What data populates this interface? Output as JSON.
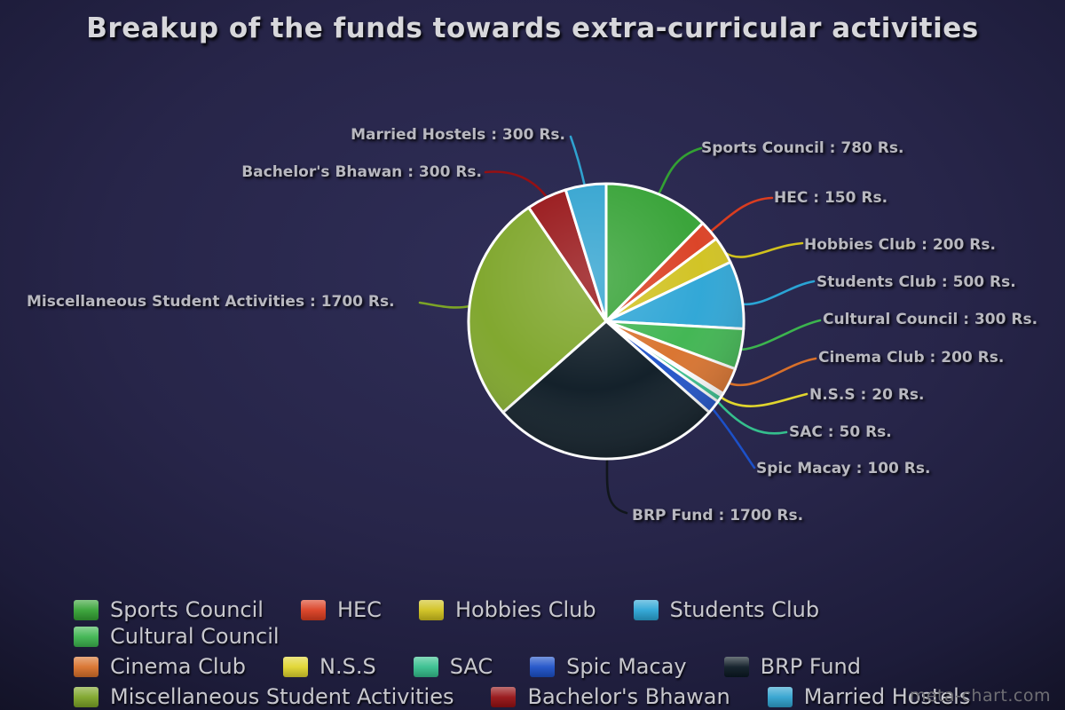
{
  "title": "Breakup of the funds towards extra-curricular activities",
  "watermark": "meta-chart.com",
  "chart_data": {
    "type": "pie",
    "title": "Breakup of the funds towards extra-curricular activities",
    "unit": "Rs.",
    "total": 6300,
    "legend_position": "bottom",
    "start_angle_deg": 0,
    "direction": "clockwise",
    "slices": [
      {
        "name": "Sports Council",
        "value": 780,
        "color": "#33a133",
        "callout": "Sports Council : 780 Rs."
      },
      {
        "name": "HEC",
        "value": 150,
        "color": "#da3d20",
        "callout": "HEC : 150 Rs."
      },
      {
        "name": "Hobbies Club",
        "value": 200,
        "color": "#d0c11d",
        "callout": "Hobbies Club : 200 Rs."
      },
      {
        "name": "Students Club",
        "value": 500,
        "color": "#2aa4d5",
        "callout": "Students Club : 500 Rs."
      },
      {
        "name": "Cultural Council",
        "value": 300,
        "color": "#3cb44e",
        "callout": "Cultural Council : 300 Rs."
      },
      {
        "name": "Cinema Club",
        "value": 200,
        "color": "#d8702a",
        "callout": "Cinema Club : 200 Rs."
      },
      {
        "name": "N.S.S",
        "value": 20,
        "color": "#e0d52e",
        "callout": "N.S.S : 20 Rs."
      },
      {
        "name": "SAC",
        "value": 50,
        "color": "#35bf8d",
        "callout": "SAC : 50 Rs."
      },
      {
        "name": "Spic Macay",
        "value": 100,
        "color": "#1c50c8",
        "callout": "Spic Macay : 100 Rs."
      },
      {
        "name": "BRP Fund",
        "value": 1700,
        "color": "#0a1822",
        "callout": "BRP Fund : 1700 Rs."
      },
      {
        "name": "Miscellaneous Student Activities",
        "value": 1700,
        "color": "#7ca427",
        "callout": "Miscellaneous Student Activities : 1700 Rs."
      },
      {
        "name": "Bachelor's Bhawan",
        "value": 300,
        "color": "#951013",
        "callout": "Bachelor's Bhawan : 300 Rs."
      },
      {
        "name": "Married Hostels",
        "value": 300,
        "color": "#2fa2cf",
        "callout": "Married Hostels : 300 Rs."
      }
    ]
  }
}
